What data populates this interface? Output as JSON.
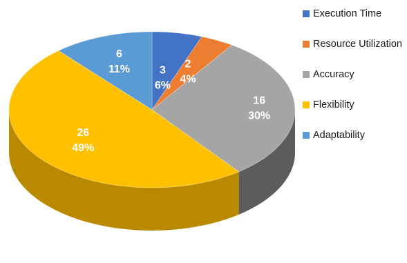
{
  "chart_data": {
    "type": "pie",
    "title": "",
    "legend_position": "right",
    "slices": [
      {
        "name": "Execution Time",
        "value": 3,
        "percent": "6%",
        "color": "#4472C4",
        "side_color": "#2B4F8E"
      },
      {
        "name": "Resource Utilization",
        "value": 2,
        "percent": "4%",
        "color": "#ED7D31",
        "side_color": "#A7521A"
      },
      {
        "name": "Accuracy",
        "value": 16,
        "percent": "30%",
        "color": "#A5A5A5",
        "side_color": "#5C5C5C"
      },
      {
        "name": "Flexibility",
        "value": 26,
        "percent": "49%",
        "color": "#FFC000",
        "side_color": "#B98A00"
      },
      {
        "name": "Adaptability",
        "value": 6,
        "percent": "11%",
        "color": "#5B9BD5",
        "side_color": "#3A6E9E"
      }
    ]
  }
}
